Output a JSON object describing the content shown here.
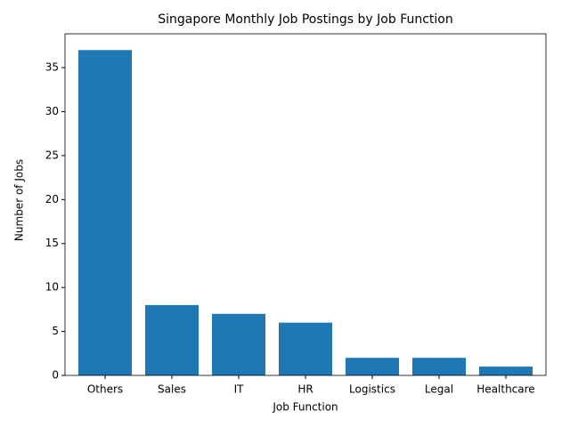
{
  "chart_data": {
    "type": "bar",
    "title": "Singapore Monthly Job Postings by Job Function",
    "x_label": "Job Function",
    "y_label": "Number of Jobs",
    "categories": [
      "Others",
      "Sales",
      "IT",
      "HR",
      "Logistics",
      "Legal",
      "Healthcare"
    ],
    "values": [
      37,
      8,
      7,
      6,
      2,
      2,
      1
    ],
    "color": "#1f77b4",
    "ylim": [
      0,
      38.85
    ],
    "yticks": [
      0,
      5,
      10,
      15,
      20,
      25,
      30,
      35
    ],
    "grid": false
  }
}
